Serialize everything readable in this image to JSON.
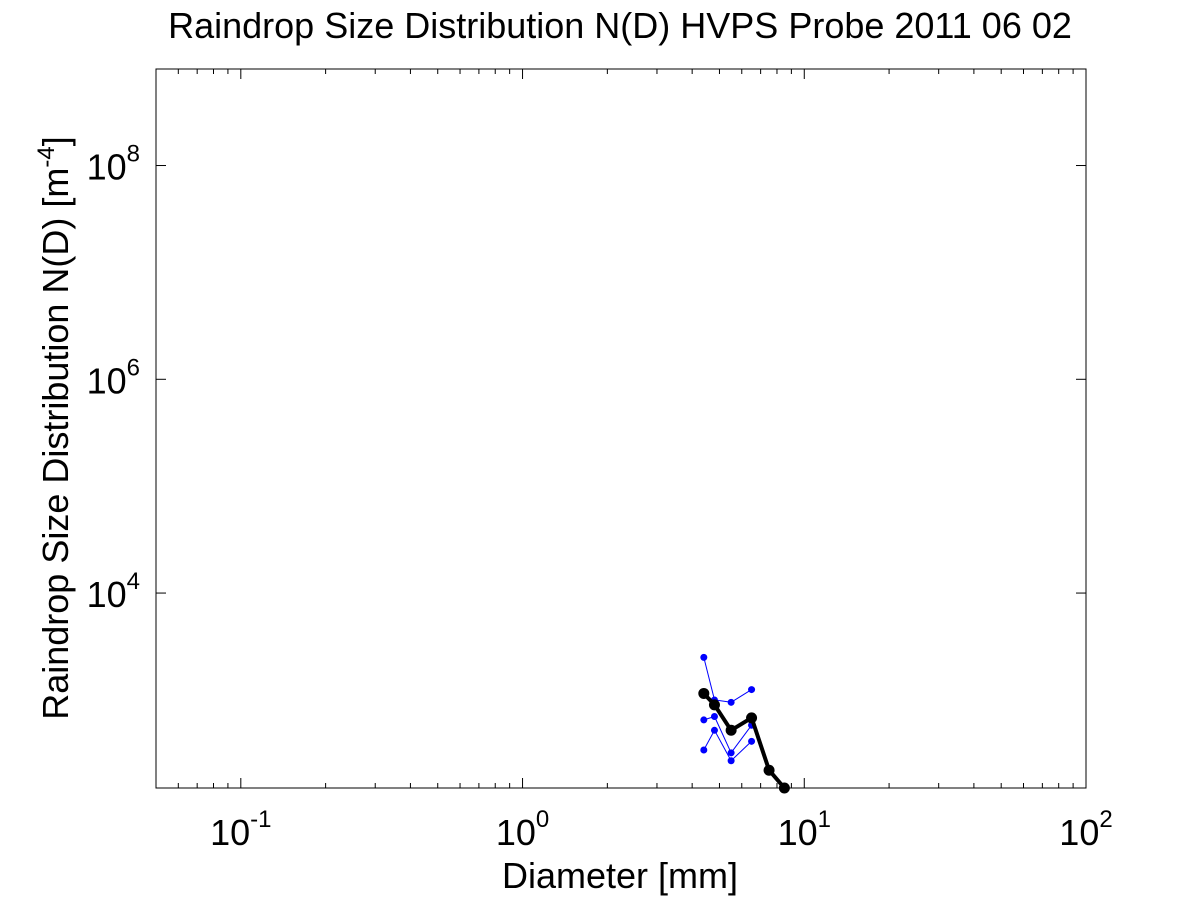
{
  "chart_data": {
    "type": "line",
    "title": "Raindrop Size Distribution N(D) HVPS Probe 2011 06 02",
    "xlabel": "Diameter [mm]",
    "ylabel": "Raindrop Size Distribution N(D) [m",
    "ylabel_sup": "-4",
    "ylabel_close": "]",
    "x_scale": "log",
    "y_scale": "log",
    "xlim": [
      0.05,
      100
    ],
    "ylim": [
      150,
      800000000
    ],
    "x_ticks": [
      {
        "value": 0.1,
        "base": "10",
        "exp": "-1"
      },
      {
        "value": 1,
        "base": "10",
        "exp": "0"
      },
      {
        "value": 10,
        "base": "10",
        "exp": "1"
      },
      {
        "value": 100,
        "base": "10",
        "exp": "2"
      }
    ],
    "y_ticks": [
      {
        "value": 10000,
        "base": "10",
        "exp": "4"
      },
      {
        "value": 1000000,
        "base": "10",
        "exp": "6"
      },
      {
        "value": 100000000,
        "base": "10",
        "exp": "8"
      }
    ],
    "grid": false,
    "box": true,
    "series": [
      {
        "color": "#000000",
        "line_width": 4,
        "marker_radius": 5.5,
        "points": [
          [
            4.4,
            1150
          ],
          [
            4.8,
            900
          ],
          [
            5.5,
            520
          ],
          [
            6.5,
            680
          ],
          [
            7.5,
            220
          ],
          [
            8.5,
            150
          ]
        ]
      },
      {
        "color": "#0000ff",
        "line_width": 1,
        "marker_radius": 3.5,
        "points": [
          [
            4.4,
            2500
          ],
          [
            4.8,
            1000
          ],
          [
            5.5,
            950
          ],
          [
            6.5,
            1250
          ]
        ]
      },
      {
        "color": "#0000ff",
        "line_width": 1,
        "marker_radius": 3.5,
        "points": [
          [
            4.4,
            650
          ],
          [
            4.8,
            700
          ],
          [
            5.5,
            320
          ],
          [
            6.5,
            580
          ]
        ]
      },
      {
        "color": "#0000ff",
        "line_width": 1,
        "marker_radius": 3.5,
        "points": [
          [
            4.4,
            340
          ],
          [
            4.8,
            520
          ],
          [
            5.5,
            270
          ],
          [
            6.5,
            410
          ]
        ]
      }
    ]
  }
}
